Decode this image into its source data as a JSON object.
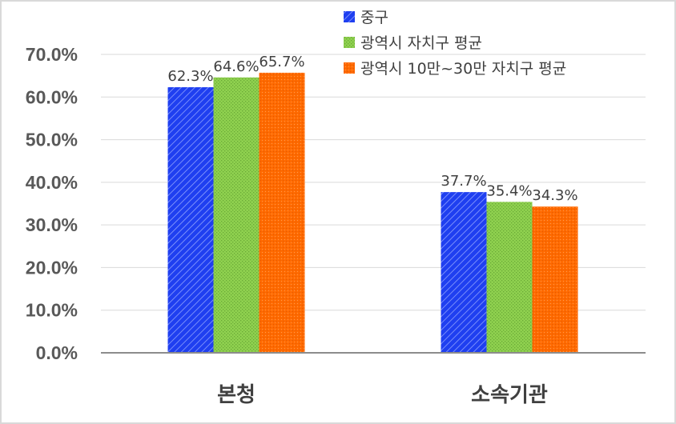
{
  "chart_data": {
    "type": "bar",
    "categories": [
      "본청",
      "소속기관"
    ],
    "series": [
      {
        "name": "중구",
        "values": [
          62.3,
          37.7
        ],
        "color": "#1f3ff0",
        "pattern": "diagonal-stripes"
      },
      {
        "name": "광역시 자치구 평균",
        "values": [
          64.6,
          35.4
        ],
        "color": "#8fd14f",
        "pattern": "dots"
      },
      {
        "name": "광역시 10만~30만 자치구 평균",
        "values": [
          65.7,
          34.3
        ],
        "color": "#ff6a00",
        "pattern": "fine-dots"
      }
    ],
    "value_labels": [
      [
        "62.3%",
        "37.7%"
      ],
      [
        "64.6%",
        "35.4%"
      ],
      [
        "65.7%",
        "34.3%"
      ]
    ],
    "y_ticks": [
      "0.0%",
      "10.0%",
      "20.0%",
      "30.0%",
      "40.0%",
      "50.0%",
      "60.0%",
      "70.0%"
    ],
    "ylim": [
      0,
      70
    ],
    "grid": true,
    "legend_position": "top-right"
  }
}
